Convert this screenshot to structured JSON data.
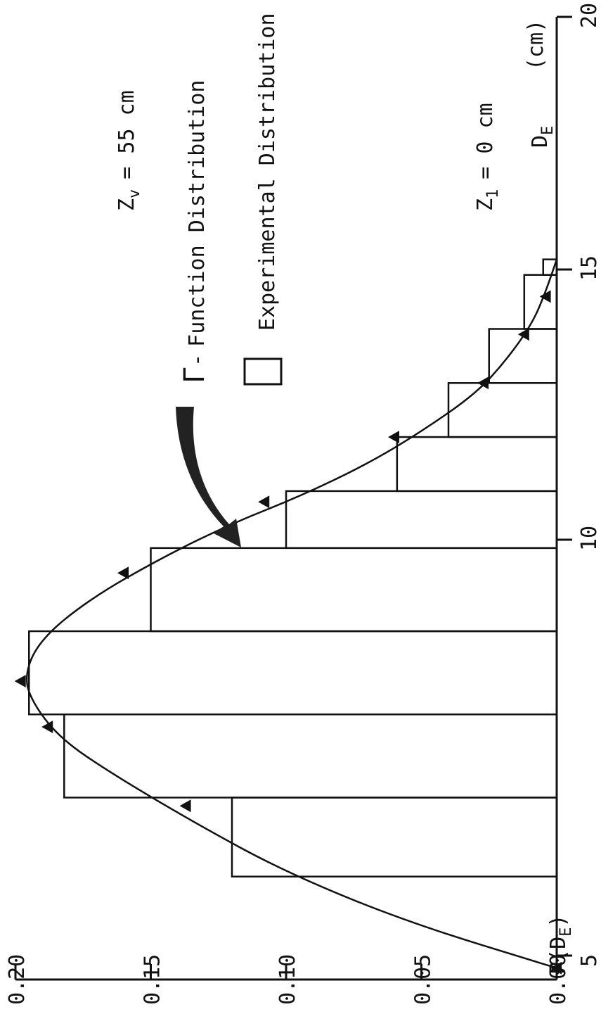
{
  "chart_data": {
    "type": "bar",
    "xlabel": "D",
    "xlabel_sub": "E",
    "xunit": "(cm)",
    "ylabel": "P(D",
    "ylabel_sub": "E",
    "ylabel_close": ")",
    "xlim": [
      4.5,
      20
    ],
    "ylim": [
      0,
      0.2
    ],
    "x_ticks": [
      5,
      10,
      15,
      20
    ],
    "y_ticks": [
      "0.00",
      "0.05",
      "0.10",
      "0.15",
      "0.20"
    ],
    "annotations": {
      "z1_label": "Z",
      "z1_sub": "1",
      "z1_value": "= 0 cm",
      "zv_label": "Z",
      "zv_sub": "v",
      "zv_value": "= 55 cm"
    },
    "legend": [
      {
        "glyph": "Γ",
        "dash": "-",
        "label": "Function Distribution",
        "type": "line-with-triangles"
      },
      {
        "label": "Experimental Distribution",
        "type": "histogram-box"
      }
    ],
    "histogram": {
      "name": "Experimental Distribution",
      "bins": [
        {
          "x0": 5.95,
          "x1": 6.9,
          "value": 0.12
        },
        {
          "x0": 6.9,
          "x1": 7.9,
          "value": 0.182
        },
        {
          "x0": 7.9,
          "x1": 8.9,
          "value": 0.195
        },
        {
          "x0": 8.9,
          "x1": 9.9,
          "value": 0.15
        },
        {
          "x0": 9.9,
          "x1": 10.9,
          "value": 0.1
        },
        {
          "x0": 10.9,
          "x1": 11.9,
          "value": 0.059
        },
        {
          "x0": 11.9,
          "x1": 12.9,
          "value": 0.04
        },
        {
          "x0": 12.9,
          "x1": 13.9,
          "value": 0.025
        },
        {
          "x0": 13.9,
          "x1": 14.9,
          "value": 0.012
        },
        {
          "x0": 14.9,
          "x1": 15.2,
          "value": 0.005
        }
      ]
    },
    "curve": {
      "name": "Function Distribution",
      "x": [
        4.85,
        5.4,
        6,
        6.6,
        7.2,
        7.6,
        8,
        8.35,
        8.8,
        9.3,
        9.8,
        10.3,
        10.8,
        11.4,
        12,
        12.7,
        13.3,
        14,
        14.6,
        15.2
      ],
      "y": [
        0.0,
        0.055,
        0.1,
        0.134,
        0.165,
        0.183,
        0.193,
        0.197,
        0.191,
        0.172,
        0.145,
        0.12,
        0.095,
        0.07,
        0.05,
        0.03,
        0.019,
        0.009,
        0.004,
        0.0
      ]
    },
    "triangle_markers": {
      "x": [
        4.85,
        6.8,
        7.75,
        8.3,
        9.6,
        10.7,
        11.9,
        12.9,
        13.8,
        14.5
      ],
      "y": [
        0.0,
        0.137,
        0.188,
        0.198,
        0.16,
        0.108,
        0.06,
        0.027,
        0.012,
        0.004
      ]
    }
  }
}
